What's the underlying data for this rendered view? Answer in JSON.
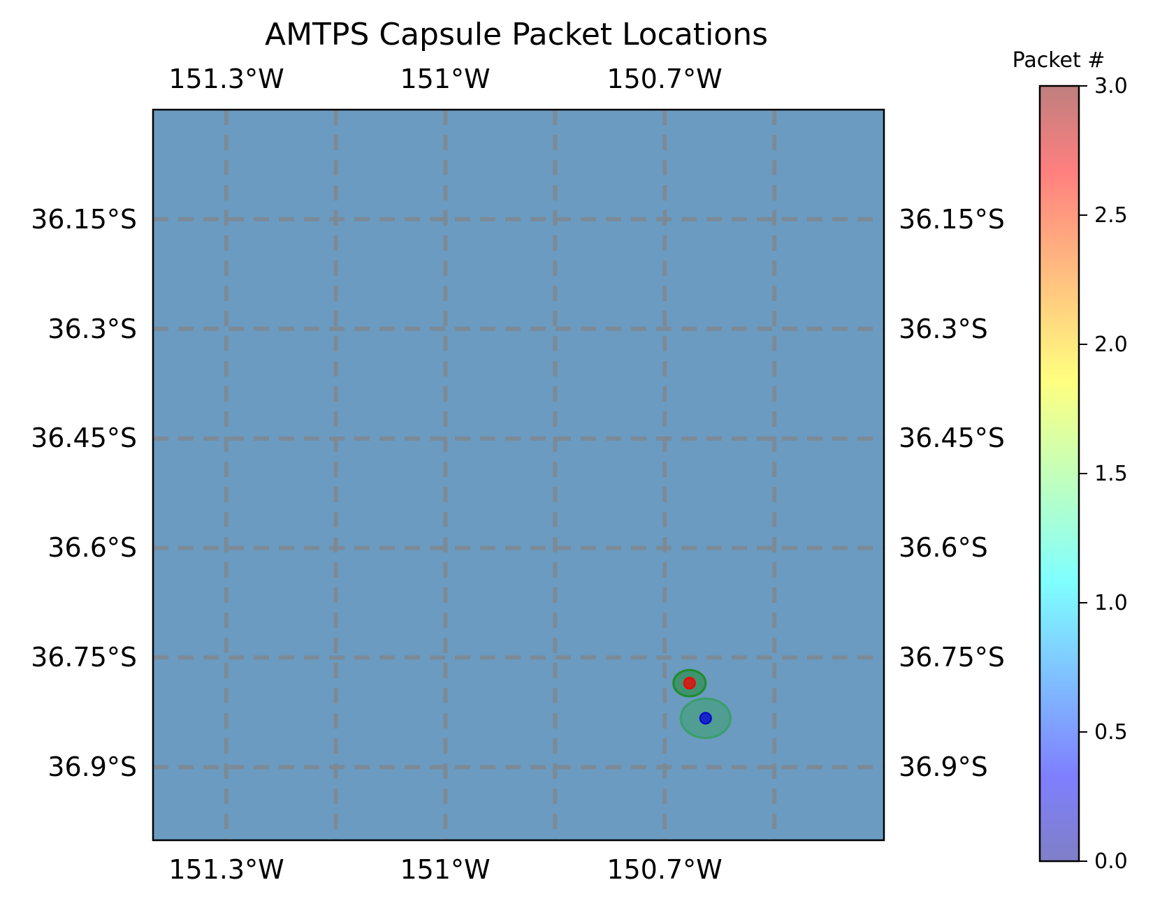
{
  "title": "AMTPS Capsule Packet Locations",
  "map": {
    "ocean_color": "#6b9bc0",
    "grid_color": "#7f8890",
    "lon_labels": [
      "151.3°W",
      "151°W",
      "150.7°W"
    ],
    "lat_labels": [
      "36.15°S",
      "36.3°S",
      "36.45°S",
      "36.6°S",
      "36.75°S",
      "36.9°S"
    ]
  },
  "colorbar": {
    "label": "Packet #",
    "colormap": "jet",
    "range": [
      0.0,
      3.0
    ],
    "tick_labels": [
      "0.0",
      "0.5",
      "1.0",
      "1.5",
      "2.0",
      "2.5",
      "3.0"
    ]
  },
  "chart_data": {
    "type": "scatter",
    "title": "AMTPS Capsule Packet Locations",
    "xlabel": "",
    "ylabel": "",
    "xlim": [
      -151.4,
      -150.4
    ],
    "ylim": [
      -37.0,
      -36.0
    ],
    "x_tick_values": [
      -151.3,
      -151.0,
      -150.7
    ],
    "y_tick_values": [
      -36.15,
      -36.3,
      -36.45,
      -36.6,
      -36.75,
      -36.9
    ],
    "grid": true,
    "grid_x_values": [
      -151.3,
      -151.15,
      -151.0,
      -150.85,
      -150.7,
      -150.55
    ],
    "grid_y_values": [
      -36.15,
      -36.3,
      -36.45,
      -36.6,
      -36.75,
      -36.9
    ],
    "color_scale": "jet",
    "color_range": [
      0,
      3
    ],
    "points": [
      {
        "lon": -150.666,
        "lat": -36.785,
        "packet": 2.7,
        "uncertainty_lon": 0.022,
        "uncertainty_lat": 0.018,
        "ellipse_color": "#1e8c2d"
      },
      {
        "lon": -150.644,
        "lat": -36.833,
        "packet": 0.2,
        "uncertainty_lon": 0.034,
        "uncertainty_lat": 0.027,
        "ellipse_color": "#3a9e6b"
      }
    ]
  }
}
